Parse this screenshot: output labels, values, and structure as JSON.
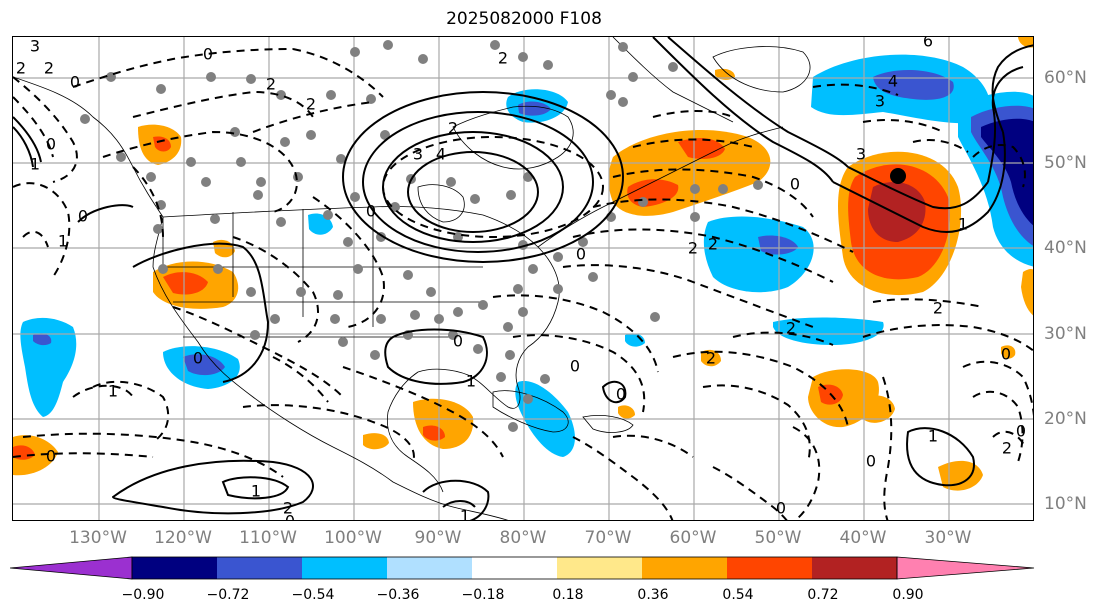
{
  "title": "2025082000 F108",
  "longitude_labels": [
    "130°W",
    "120°W",
    "110°W",
    "100°W",
    "90°W",
    "80°W",
    "70°W",
    "60°W",
    "50°W",
    "40°W",
    "30°W"
  ],
  "latitude_labels": [
    "60°N",
    "50°N",
    "40°N",
    "30°N",
    "20°N",
    "10°N"
  ],
  "colorbar": {
    "ticks": [
      "−0.90",
      "−0.72",
      "−0.54",
      "−0.36",
      "−0.18",
      "0.18",
      "0.36",
      "0.54",
      "0.72",
      "0.90"
    ],
    "colors": [
      "#9b30d0",
      "#000080",
      "#3a55d0",
      "#00bfff",
      "#b0e0ff",
      "#ffffff",
      "#ffe88a",
      "#ffa500",
      "#ff4500",
      "#b22222",
      "#ff80b0"
    ]
  },
  "contour_labels": [
    "3",
    "2",
    "2",
    "0",
    "2",
    "0",
    "2",
    "4",
    "3",
    "2",
    "1",
    "0",
    "2",
    "1",
    "0",
    "1",
    "0",
    "2",
    "0",
    "0",
    "1",
    "0",
    "1",
    "0",
    "1",
    "0",
    "6",
    "4",
    "3",
    "3",
    "2",
    "2",
    "0",
    "2",
    "1",
    "0",
    "0",
    "2",
    "2",
    "0",
    "1",
    "2",
    "0",
    "0",
    "0"
  ]
}
